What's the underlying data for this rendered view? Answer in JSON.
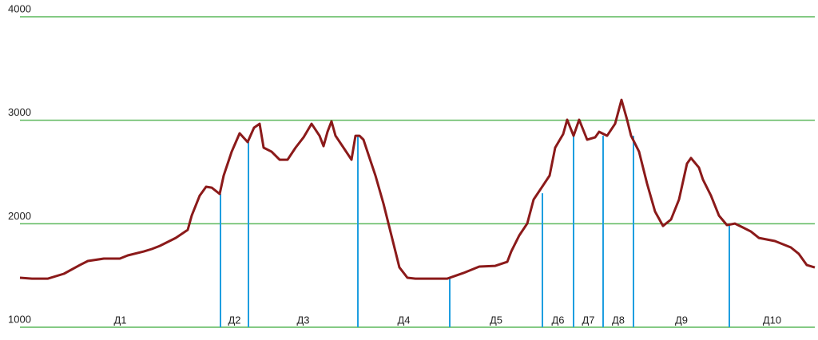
{
  "chart_data": {
    "type": "line",
    "x": [
      0,
      15,
      35,
      55,
      75,
      85,
      105,
      125,
      135,
      155,
      165,
      175,
      195,
      210,
      215,
      225,
      233,
      240,
      250,
      255,
      265,
      275,
      285,
      293,
      300,
      305,
      315,
      325,
      335,
      345,
      355,
      365,
      375,
      380,
      385,
      390,
      395,
      405,
      415,
      420,
      425,
      430,
      435,
      445,
      455,
      465,
      475,
      485,
      495,
      515,
      535,
      555,
      575,
      595,
      610,
      615,
      625,
      635,
      643,
      653,
      663,
      670,
      680,
      685,
      693,
      700,
      710,
      720,
      725,
      735,
      745,
      753,
      760,
      765,
      775,
      785,
      795,
      805,
      815,
      825,
      835,
      840,
      850,
      855,
      865,
      875,
      885,
      895,
      905,
      915,
      925,
      945,
      965,
      975,
      985,
      995
    ],
    "series": [
      {
        "color": "#8b1a1a",
        "values": [
          1478,
          1470,
          1470,
          1517,
          1601,
          1640,
          1663,
          1663,
          1694,
          1732,
          1756,
          1786,
          1863,
          1941,
          2079,
          2272,
          2357,
          2349,
          2288,
          2465,
          2696,
          2874,
          2789,
          2928,
          2966,
          2735,
          2696,
          2619,
          2619,
          2735,
          2835,
          2966,
          2850,
          2750,
          2889,
          2989,
          2850,
          2735,
          2619,
          2850,
          2850,
          2812,
          2696,
          2465,
          2195,
          1887,
          1578,
          1478,
          1470,
          1470,
          1470,
          1524,
          1586,
          1593,
          1632,
          1732,
          1887,
          2002,
          2234,
          2349,
          2465,
          2735,
          2866,
          3005,
          2850,
          3005,
          2812,
          2835,
          2889,
          2850,
          2966,
          3197,
          3005,
          2850,
          2696,
          2388,
          2118,
          1979,
          2041,
          2234,
          2581,
          2635,
          2542,
          2426,
          2272,
          2079,
          1987,
          2002,
          1964,
          1925,
          1863,
          1833,
          1771,
          1709,
          1601,
          1578
        ]
      }
    ],
    "xlim": [
      0,
      995
    ],
    "ylim": [
      1000,
      4000
    ],
    "yticks": [
      1000,
      2000,
      3000,
      4000
    ],
    "grid": true,
    "grid_color": "#5cb85c",
    "splits": {
      "color": "#1e9ee0",
      "x": [
        251,
        286,
        423,
        538,
        654,
        693,
        730,
        768,
        888
      ],
      "values": [
        2288,
        2789,
        2850,
        1470,
        2295,
        2850,
        2850,
        2850,
        1987
      ]
    },
    "segments": [
      "Д1",
      "Д2",
      "Д3",
      "Д4",
      "Д5",
      "Д6",
      "Д7",
      "Д8",
      "Д9",
      "Д10"
    ]
  }
}
